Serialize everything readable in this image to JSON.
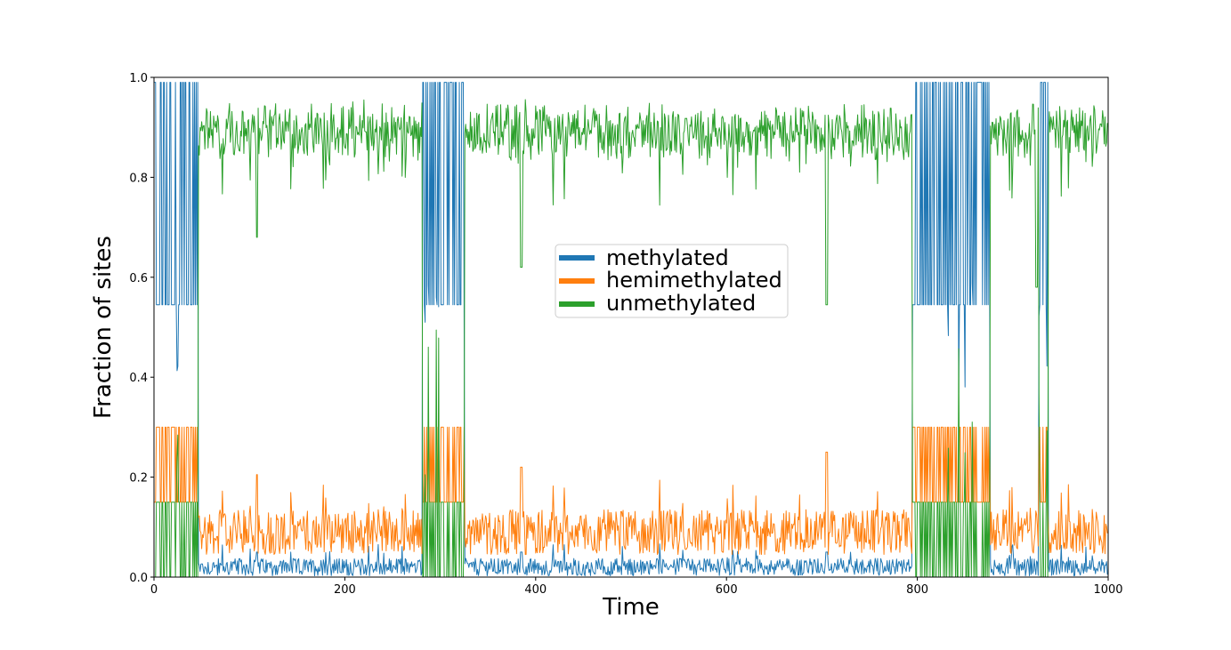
{
  "chart_data": {
    "type": "line",
    "title": "",
    "xlabel": "Time",
    "ylabel": "Fraction of sites",
    "xlim": [
      0,
      1000
    ],
    "ylim": [
      0,
      1.0
    ],
    "x_ticks": [
      "0",
      "200",
      "400",
      "600",
      "800",
      "1000"
    ],
    "y_ticks": [
      "0.0",
      "0.2",
      "0.4",
      "0.6",
      "0.8",
      "1.0"
    ],
    "grid": false,
    "legend_position": "center",
    "colors": {
      "methylated": "#1f77b4",
      "hemimethylated": "#ff7f0e",
      "unmethylated": "#2ca02c"
    },
    "series": [
      {
        "name": "methylated"
      },
      {
        "name": "hemimethylated"
      },
      {
        "name": "unmethylated"
      }
    ],
    "regimes": {
      "switching_intervals": [
        [
          0,
          46
        ],
        [
          281,
          325
        ],
        [
          795,
          876
        ],
        [
          927,
          937
        ]
      ],
      "baseline_means": {
        "methylated": 0.02,
        "hemimethylated": 0.09,
        "unmethylated": 0.89
      },
      "switching_levels": {
        "methylated": [
          0.545,
          0.99
        ],
        "hemimethylated": [
          0.15,
          0.3
        ],
        "unmethylated": [
          0.0,
          0.15
        ]
      }
    },
    "approx_points": {
      "unmethylated_dips": [
        {
          "x": 108,
          "y": 0.68
        },
        {
          "x": 385,
          "y": 0.62
        },
        {
          "x": 705,
          "y": 0.545
        },
        {
          "x": 925,
          "y": 0.58
        }
      ],
      "hemimethylated_spikes": [
        {
          "x": 108,
          "y": 0.205
        },
        {
          "x": 385,
          "y": 0.22
        },
        {
          "x": 705,
          "y": 0.25
        }
      ]
    }
  }
}
